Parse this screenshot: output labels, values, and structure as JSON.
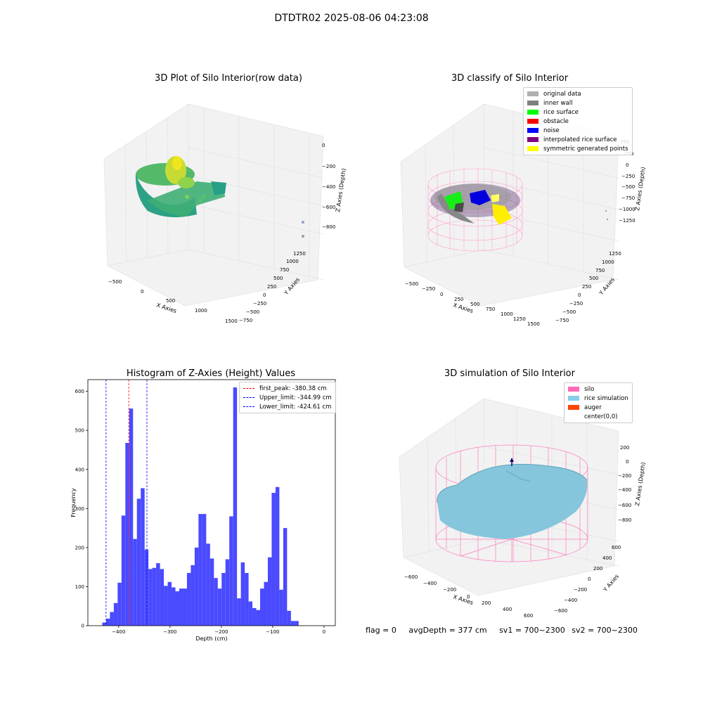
{
  "suptitle": "DTDTR02 2025-08-06 04:23:08",
  "colors": {
    "hist_bar": "#4a4aff",
    "first_peak_line": "#ff0000",
    "limit_line": "#0000ff",
    "silo": "#ff69b4",
    "rice_simulation": "#87ceeb",
    "auger": "#ff4500"
  },
  "plot1": {
    "title": "3D Plot of Silo Interior(row data)",
    "xlabel": "X Axies",
    "ylabel": "Y Axies",
    "zlabel": "Z Axies (Depth)",
    "xticks": [
      "−500",
      "0",
      "500",
      "1000",
      "1500"
    ],
    "yticks": [
      "1250",
      "1000",
      "750",
      "500",
      "250",
      "0",
      "−250",
      "−500",
      "−750"
    ],
    "zticks": [
      "0",
      "−200",
      "−400",
      "−600",
      "−800"
    ]
  },
  "plot2": {
    "title": "3D classify of Silo Interior",
    "xlabel": "X Axies",
    "ylabel": "Y Axies",
    "zlabel": "Z Axies (Depth)",
    "xticks": [
      "−500",
      "−250",
      "0",
      "250",
      "500",
      "750",
      "1000",
      "1250",
      "1500"
    ],
    "yticks": [
      "1250",
      "1000",
      "750",
      "500",
      "250",
      "0",
      "−250",
      "−500",
      "−750"
    ],
    "zticks": [
      "500",
      "250",
      "0",
      "−250",
      "−500",
      "−750",
      "−1000",
      "−1250"
    ],
    "legend": [
      {
        "label": "original data",
        "color": "#b0b0b0"
      },
      {
        "label": "inner wall",
        "color": "#808080"
      },
      {
        "label": "rice surface",
        "color": "#00ff00"
      },
      {
        "label": "obstacle",
        "color": "#ff0000"
      },
      {
        "label": "noise",
        "color": "#0000ff"
      },
      {
        "label": "interpolated rice surface",
        "color": "#800080"
      },
      {
        "label": "symmetric generated points",
        "color": "#ffff00"
      }
    ]
  },
  "plot3": {
    "title": "Histogram of Z-Axies (Height) Values",
    "xlabel": "Depth (cm)",
    "ylabel": "Frequency",
    "legend": [
      {
        "label": "first_peak: -380.38 cm",
        "color": "#ff0000"
      },
      {
        "label": "Upper_limit: -344.99 cm",
        "color": "#0000ff"
      },
      {
        "label": "Lower_limit: -424.61 cm",
        "color": "#0000ff"
      }
    ]
  },
  "plot4": {
    "title": "3D simulation of Silo Interior",
    "xlabel": "X Axies",
    "ylabel": "Y Axies",
    "zlabel": "Z Axies (Depth)",
    "xticks": [
      "−600",
      "−400",
      "−200",
      "0",
      "200",
      "400",
      "600"
    ],
    "yticks": [
      "600",
      "400",
      "200",
      "0",
      "−200",
      "−400",
      "−600"
    ],
    "zticks": [
      "200",
      "0",
      "−200",
      "−400",
      "−600",
      "−800"
    ],
    "legend": [
      {
        "label": "silo",
        "color": "#ff69b4"
      },
      {
        "label": "rice simulation",
        "color": "#87ceeb"
      },
      {
        "label": "auger",
        "color": "#ff4500"
      },
      {
        "label": "center(0,0)",
        "color": ""
      }
    ]
  },
  "status": {
    "flag": "flag = 0",
    "avg_depth": "avgDepth = 377 cm",
    "sv1": "sv1 = 700~2300",
    "sv2": "sv2 = 700~2300"
  },
  "chart_data": {
    "type": "bar",
    "title": "Histogram of Z-Axies (Height) Values",
    "xlabel": "Depth (cm)",
    "ylabel": "Frequency",
    "xlim": [
      -460,
      22
    ],
    "ylim": [
      0,
      630
    ],
    "xticks": [
      -400,
      -300,
      -200,
      -100,
      0
    ],
    "yticks": [
      0,
      100,
      200,
      300,
      400,
      500,
      600
    ],
    "bin_width": 7.5,
    "bin_start": -432,
    "values": [
      8,
      18,
      35,
      58,
      110,
      282,
      468,
      556,
      222,
      325,
      352,
      195,
      145,
      148,
      160,
      145,
      102,
      112,
      98,
      88,
      95,
      95,
      135,
      155,
      200,
      286,
      286,
      210,
      172,
      122,
      95,
      135,
      170,
      280,
      610,
      70,
      162,
      135,
      62,
      45,
      40,
      95,
      112,
      175,
      340,
      355,
      92,
      250,
      38,
      12,
      12
    ],
    "vlines": [
      {
        "name": "first_peak: -380.38 cm",
        "x": -380.38
      },
      {
        "name": "Upper_limit: -344.99 cm",
        "x": -344.99
      },
      {
        "name": "Lower_limit: -424.61 cm",
        "x": -424.61
      }
    ]
  }
}
